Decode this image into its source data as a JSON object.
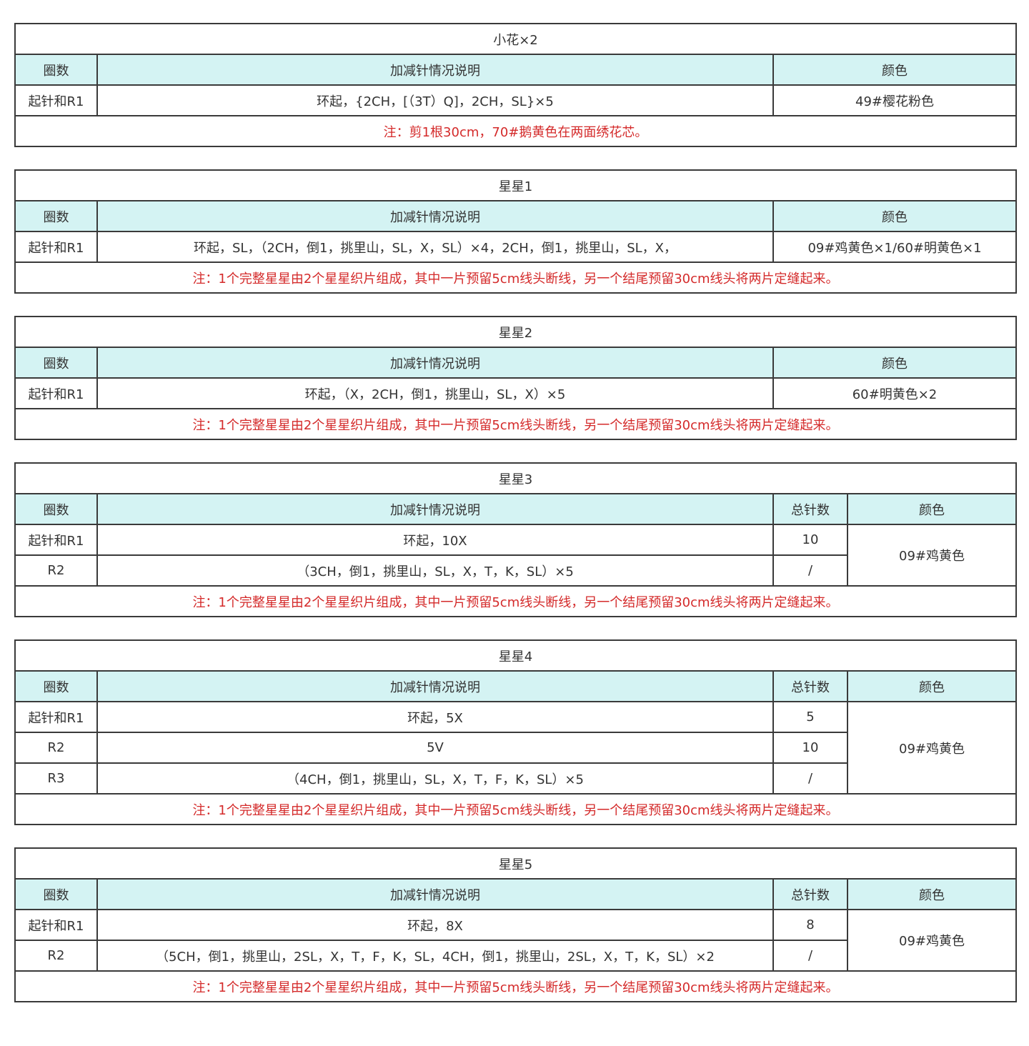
{
  "colors": {
    "header_bg": "#d4f3f3",
    "note_text": "#d42a2a",
    "border": "#3a3a3a"
  },
  "tables": [
    {
      "title": "小花×2",
      "headers": [
        "圈数",
        "加减针情况说明",
        "颜色"
      ],
      "rows": [
        {
          "round": "起针和R1",
          "desc": "环起，{2CH，[（3T）Q]，2CH，SL}×5"
        }
      ],
      "color": "49#樱花粉色",
      "note": "注：剪1根30cm，70#鹅黄色在两面绣花芯。"
    },
    {
      "title": "星星1",
      "headers": [
        "圈数",
        "加减针情况说明",
        "颜色"
      ],
      "rows": [
        {
          "round": "起针和R1",
          "desc": "环起，SL，（2CH，倒1，挑里山，SL，X，SL）×4，2CH，倒1，挑里山，SL，X，"
        }
      ],
      "color": "09#鸡黄色×1/60#明黄色×1",
      "note": "注：1个完整星星由2个星星织片组成，其中一片预留5cm线头断线，另一个结尾预留30cm线头将两片定缝起来。"
    },
    {
      "title": "星星2",
      "headers": [
        "圈数",
        "加减针情况说明",
        "颜色"
      ],
      "rows": [
        {
          "round": "起针和R1",
          "desc": "环起，（X，2CH，倒1，挑里山，SL，X）×5"
        }
      ],
      "color": "60#明黄色×2",
      "note": "注：1个完整星星由2个星星织片组成，其中一片预留5cm线头断线，另一个结尾预留30cm线头将两片定缝起来。"
    },
    {
      "title": "星星3",
      "headers": [
        "圈数",
        "加减针情况说明",
        "总针数",
        "颜色"
      ],
      "rows": [
        {
          "round": "起针和R1",
          "desc": "环起，10X",
          "total": "10"
        },
        {
          "round": "R2",
          "desc": "（3CH，倒1，挑里山，SL，X，T，K，SL）×5",
          "total": "/"
        }
      ],
      "color": "09#鸡黄色",
      "note": "注：1个完整星星由2个星星织片组成，其中一片预留5cm线头断线，另一个结尾预留30cm线头将两片定缝起来。"
    },
    {
      "title": "星星4",
      "headers": [
        "圈数",
        "加减针情况说明",
        "总针数",
        "颜色"
      ],
      "rows": [
        {
          "round": "起针和R1",
          "desc": "环起，5X",
          "total": "5"
        },
        {
          "round": "R2",
          "desc": "5V",
          "total": "10"
        },
        {
          "round": "R3",
          "desc": "（4CH，倒1，挑里山，SL，X，T，F，K，SL）×5",
          "total": "/"
        }
      ],
      "color": "09#鸡黄色",
      "note": "注：1个完整星星由2个星星织片组成，其中一片预留5cm线头断线，另一个结尾预留30cm线头将两片定缝起来。"
    },
    {
      "title": "星星5",
      "headers": [
        "圈数",
        "加减针情况说明",
        "总针数",
        "颜色"
      ],
      "rows": [
        {
          "round": "起针和R1",
          "desc": "环起，8X",
          "total": "8"
        },
        {
          "round": "R2",
          "desc": "（5CH，倒1，挑里山，2SL，X，T，F，K，SL，4CH，倒1，挑里山，2SL，X，T，K，SL）×2",
          "total": "/"
        }
      ],
      "color": "09#鸡黄色",
      "note": "注：1个完整星星由2个星星织片组成，其中一片预留5cm线头断线，另一个结尾预留30cm线头将两片定缝起来。"
    }
  ]
}
